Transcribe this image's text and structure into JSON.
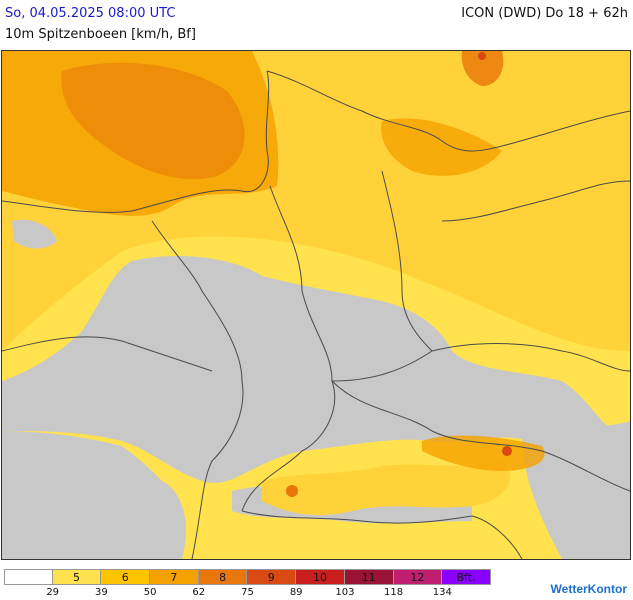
{
  "header": {
    "datetime": "So, 04.05.2025 08:00 UTC",
    "subtitle": "10m Spitzenboeen [km/h, Bf]",
    "model": "ICON (DWD) Do 18 + 62h"
  },
  "colors": {
    "no_wind": "#c8c8c8",
    "bf5": "#ffe24d",
    "bf6": "#ffc400",
    "bf7": "#f5a200",
    "bf8": "#e8760a",
    "bf9": "#d84a12",
    "bf10": "#c81e1e",
    "bf11": "#9a1236",
    "bf12": "#c01e6e",
    "bft": "#8a00ff",
    "border": "#4a4a4a"
  },
  "legend": {
    "segments": [
      {
        "label": "",
        "color": "#ffffff"
      },
      {
        "label": "5",
        "color": "#ffe24d"
      },
      {
        "label": "6",
        "color": "#ffc400"
      },
      {
        "label": "7",
        "color": "#f5a200"
      },
      {
        "label": "8",
        "color": "#e8760a"
      },
      {
        "label": "9",
        "color": "#d84a12"
      },
      {
        "label": "10",
        "color": "#c81e1e"
      },
      {
        "label": "11",
        "color": "#9a1236"
      },
      {
        "label": "12",
        "color": "#c01e6e"
      },
      {
        "label": "Bft.",
        "color": "#8a00ff"
      }
    ],
    "ticks": [
      "29",
      "39",
      "50",
      "62",
      "75",
      "89",
      "103",
      "118",
      "134"
    ]
  },
  "brand": "WetterKontor"
}
